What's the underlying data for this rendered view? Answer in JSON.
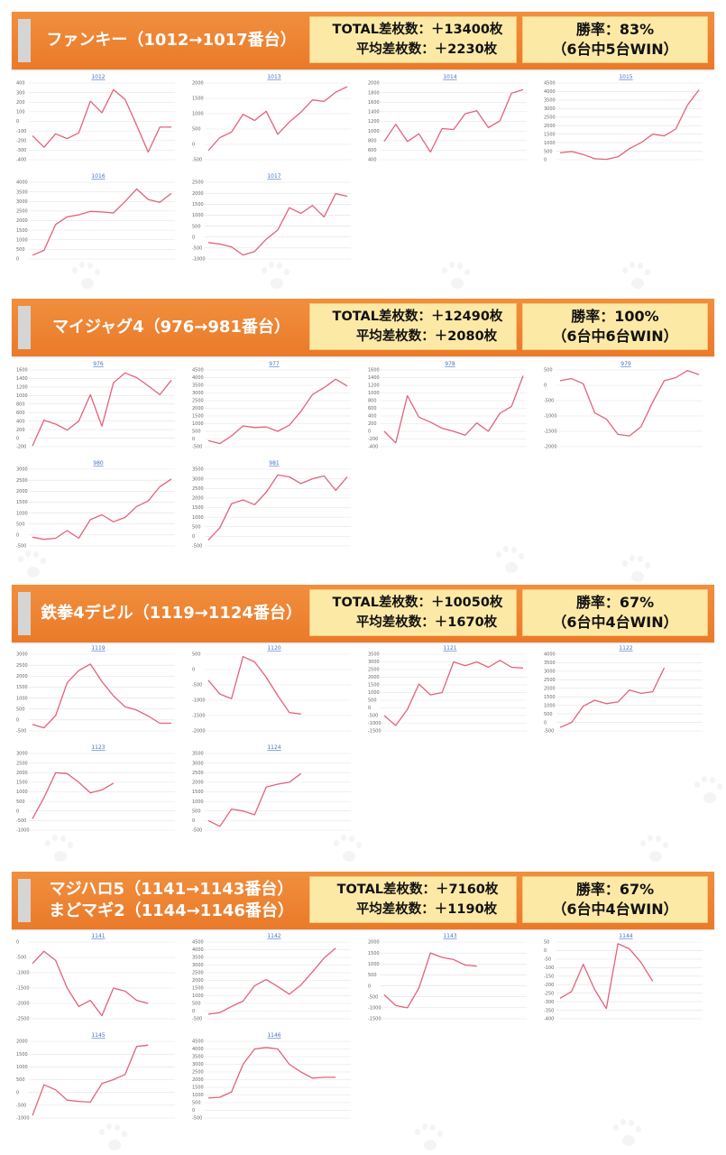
{
  "colors": {
    "header": "#ee8432",
    "box": "#fde9a6",
    "line": "#e4617a",
    "chart_title": "#4472c4"
  },
  "sections": [
    {
      "title_lines": [
        "ファンキー（1012→1017番台）"
      ],
      "total": "TOTAL差枚数：＋13400枚",
      "avg": "平均差枚数：＋2230枚",
      "rate": "勝率：83%",
      "wins": "（6台中5台WIN）"
    },
    {
      "title_lines": [
        "マイジャグ4（976→981番台）"
      ],
      "total": "TOTAL差枚数：＋12490枚",
      "avg": "平均差枚数：＋2080枚",
      "rate": "勝率：100%",
      "wins": "（6台中6台WIN）"
    },
    {
      "title_lines": [
        "鉄拳4デビル（1119→1124番台）"
      ],
      "total": "TOTAL差枚数：＋10050枚",
      "avg": "平均差枚数：＋1670枚",
      "rate": "勝率：67%",
      "wins": "（6台中4台WIN）"
    },
    {
      "title_lines": [
        "マジハロ5（1141→1143番台）",
        "まどマギ2（1144→1146番台）"
      ],
      "total": "TOTAL差枚数：＋7160枚",
      "avg": "平均差枚数：＋1190枚",
      "rate": "勝率：67%",
      "wins": "（6台中4台WIN）"
    }
  ],
  "chart_data": [
    {
      "type": "line",
      "title": "1012",
      "ylim": [
        -400,
        400
      ],
      "yticks": [
        400,
        300,
        200,
        100,
        0,
        -100,
        -200,
        -300,
        -400
      ],
      "values": [
        -150,
        -270,
        -130,
        -180,
        -120,
        210,
        90,
        330,
        230,
        -40,
        -320,
        -60,
        -60
      ]
    },
    {
      "type": "line",
      "title": "1013",
      "ylim": [
        -500,
        2000
      ],
      "yticks": [
        2000,
        1500,
        1000,
        500,
        0,
        -500
      ],
      "values": [
        -200,
        220,
        400,
        980,
        780,
        1080,
        330,
        730,
        1050,
        1450,
        1400,
        1700,
        1880
      ]
    },
    {
      "type": "line",
      "title": "1014",
      "ylim": [
        400,
        2000
      ],
      "yticks": [
        2000,
        1800,
        1600,
        1400,
        1200,
        1000,
        800,
        600,
        400
      ],
      "values": [
        780,
        1140,
        780,
        940,
        560,
        1050,
        1030,
        1360,
        1420,
        1070,
        1210,
        1790,
        1860
      ]
    },
    {
      "type": "line",
      "title": "1015",
      "ylim": [
        0,
        4500
      ],
      "yticks": [
        4500,
        4000,
        3500,
        3000,
        2500,
        2000,
        1500,
        1000,
        500,
        0
      ],
      "values": [
        400,
        480,
        300,
        60,
        20,
        170,
        650,
        1000,
        1500,
        1400,
        1800,
        3200,
        4100
      ]
    },
    {
      "type": "line",
      "title": "1016",
      "ylim": [
        0,
        4000
      ],
      "yticks": [
        4000,
        3500,
        3000,
        2500,
        2000,
        1500,
        1000,
        500,
        0
      ],
      "values": [
        200,
        450,
        1800,
        2200,
        2300,
        2480,
        2450,
        2400,
        3000,
        3650,
        3100,
        2950,
        3420
      ]
    },
    {
      "type": "line",
      "title": "1017",
      "ylim": [
        -1000,
        2500
      ],
      "yticks": [
        2500,
        2000,
        1500,
        1000,
        500,
        0,
        -500,
        -1000
      ],
      "values": [
        -250,
        -320,
        -450,
        -820,
        -660,
        -100,
        320,
        1340,
        1080,
        1440,
        920,
        1980,
        1860
      ]
    },
    {
      "type": "line",
      "title": "976",
      "ylim": [
        -200,
        1600
      ],
      "yticks": [
        1600,
        1400,
        1200,
        1000,
        800,
        600,
        400,
        200,
        0,
        -200
      ],
      "values": [
        -180,
        420,
        330,
        190,
        400,
        1020,
        280,
        1300,
        1530,
        1420,
        1230,
        1020,
        1360
      ]
    },
    {
      "type": "line",
      "title": "977",
      "ylim": [
        -500,
        4500
      ],
      "yticks": [
        4500,
        4000,
        3500,
        3000,
        2500,
        2000,
        1500,
        1000,
        500,
        0,
        -500
      ],
      "values": [
        -100,
        -300,
        200,
        850,
        750,
        780,
        500,
        900,
        1800,
        2900,
        3350,
        3900,
        3450
      ]
    },
    {
      "type": "line",
      "title": "978",
      "ylim": [
        -400,
        1600
      ],
      "yticks": [
        1600,
        1400,
        1200,
        1000,
        800,
        600,
        400,
        200,
        0,
        -200,
        -400
      ],
      "values": [
        0,
        -300,
        930,
        370,
        240,
        80,
        0,
        -100,
        220,
        0,
        470,
        650,
        1450
      ]
    },
    {
      "type": "line",
      "title": "979",
      "ylim": [
        -2000,
        500
      ],
      "yticks": [
        500,
        0,
        -500,
        -1000,
        -1500,
        -2000
      ],
      "values": [
        150,
        220,
        50,
        -900,
        -1100,
        -1600,
        -1650,
        -1350,
        -550,
        150,
        250,
        480,
        350
      ]
    },
    {
      "type": "line",
      "title": "980",
      "ylim": [
        -500,
        3000
      ],
      "yticks": [
        3000,
        2500,
        2000,
        1500,
        1000,
        500,
        0,
        -500
      ],
      "values": [
        -100,
        -200,
        -150,
        200,
        -150,
        700,
        920,
        600,
        800,
        1300,
        1550,
        2200,
        2550
      ]
    },
    {
      "type": "line",
      "title": "981",
      "ylim": [
        -500,
        3500
      ],
      "yticks": [
        3500,
        3000,
        2500,
        2000,
        1500,
        1000,
        500,
        0,
        -500
      ],
      "values": [
        -200,
        450,
        1700,
        1900,
        1650,
        2300,
        3200,
        3100,
        2750,
        3000,
        3150,
        2400,
        3100
      ]
    },
    {
      "type": "line",
      "title": "1119",
      "ylim": [
        -500,
        3000
      ],
      "yticks": [
        3000,
        2500,
        2000,
        1500,
        1000,
        500,
        0,
        -500
      ],
      "values": [
        -200,
        -360,
        200,
        1700,
        2250,
        2550,
        1750,
        1100,
        600,
        450,
        180,
        -150,
        -150
      ]
    },
    {
      "type": "line",
      "title": "1120",
      "ylim": [
        -2000,
        500
      ],
      "yticks": [
        500,
        0,
        -500,
        -1000,
        -1500,
        -2000
      ],
      "values": [
        -350,
        -800,
        -950,
        420,
        250,
        -250,
        -850,
        -1400,
        -1450
      ]
    },
    {
      "type": "line",
      "title": "1121",
      "ylim": [
        -1500,
        3500
      ],
      "yticks": [
        3500,
        3000,
        2500,
        2000,
        1500,
        1000,
        500,
        0,
        -500,
        -1000,
        -1500
      ],
      "values": [
        -500,
        -1150,
        -100,
        1550,
        850,
        1000,
        3000,
        2750,
        3000,
        2650,
        3100,
        2650,
        2600
      ]
    },
    {
      "type": "line",
      "title": "1122",
      "ylim": [
        -500,
        4000
      ],
      "yticks": [
        4000,
        3500,
        3000,
        2500,
        2000,
        1500,
        1000,
        500,
        0,
        -500
      ],
      "values": [
        -300,
        0,
        950,
        1300,
        1100,
        1200,
        1900,
        1700,
        1800,
        3200
      ]
    },
    {
      "type": "line",
      "title": "1123",
      "ylim": [
        -1000,
        3000
      ],
      "yticks": [
        3000,
        2500,
        2000,
        1500,
        1000,
        500,
        0,
        -500,
        -1000
      ],
      "values": [
        -400,
        700,
        2000,
        1950,
        1500,
        950,
        1100,
        1450
      ]
    },
    {
      "type": "line",
      "title": "1124",
      "ylim": [
        -500,
        3500
      ],
      "yticks": [
        3500,
        3000,
        2500,
        2000,
        1500,
        1000,
        500,
        0,
        -500
      ],
      "values": [
        0,
        -300,
        600,
        500,
        300,
        1750,
        1900,
        2000,
        2450
      ]
    },
    {
      "type": "line",
      "title": "1141",
      "ylim": [
        -2500,
        0
      ],
      "yticks": [
        0,
        -500,
        -1000,
        -1500,
        -2000,
        -2500
      ],
      "values": [
        -700,
        -300,
        -600,
        -1500,
        -2100,
        -1900,
        -2400,
        -1500,
        -1600,
        -1900,
        -2000
      ]
    },
    {
      "type": "line",
      "title": "1142",
      "ylim": [
        -500,
        4500
      ],
      "yticks": [
        4500,
        4000,
        3500,
        3000,
        2500,
        2000,
        1500,
        1000,
        500,
        0,
        -500
      ],
      "values": [
        -200,
        -100,
        300,
        650,
        1650,
        2050,
        1600,
        1100,
        1700,
        2550,
        3450,
        4100
      ]
    },
    {
      "type": "line",
      "title": "1143",
      "ylim": [
        -1500,
        2000
      ],
      "yticks": [
        2000,
        1500,
        1000,
        500,
        0,
        -500,
        -1000,
        -1500
      ],
      "values": [
        -400,
        -900,
        -1000,
        -100,
        1500,
        1300,
        1200,
        950,
        900
      ]
    },
    {
      "type": "line",
      "title": "1144",
      "ylim": [
        -400,
        50
      ],
      "yticks": [
        50,
        0,
        -50,
        -100,
        -150,
        -200,
        -250,
        -300,
        -350,
        -400
      ],
      "values": [
        -280,
        -240,
        -80,
        -230,
        -340,
        40,
        10,
        -70,
        -180
      ]
    },
    {
      "type": "line",
      "title": "1145",
      "ylim": [
        -1000,
        2000
      ],
      "yticks": [
        2000,
        1500,
        1000,
        500,
        0,
        -500,
        -1000
      ],
      "values": [
        -900,
        300,
        100,
        -300,
        -350,
        -380,
        350,
        500,
        700,
        1800,
        1850
      ]
    },
    {
      "type": "line",
      "title": "1146",
      "ylim": [
        -500,
        4500
      ],
      "yticks": [
        4500,
        4000,
        3500,
        3000,
        2500,
        2000,
        1500,
        1000,
        500,
        0,
        -500
      ],
      "values": [
        800,
        850,
        1200,
        3000,
        4000,
        4100,
        4000,
        3000,
        2500,
        2100,
        2150,
        2150
      ]
    }
  ]
}
